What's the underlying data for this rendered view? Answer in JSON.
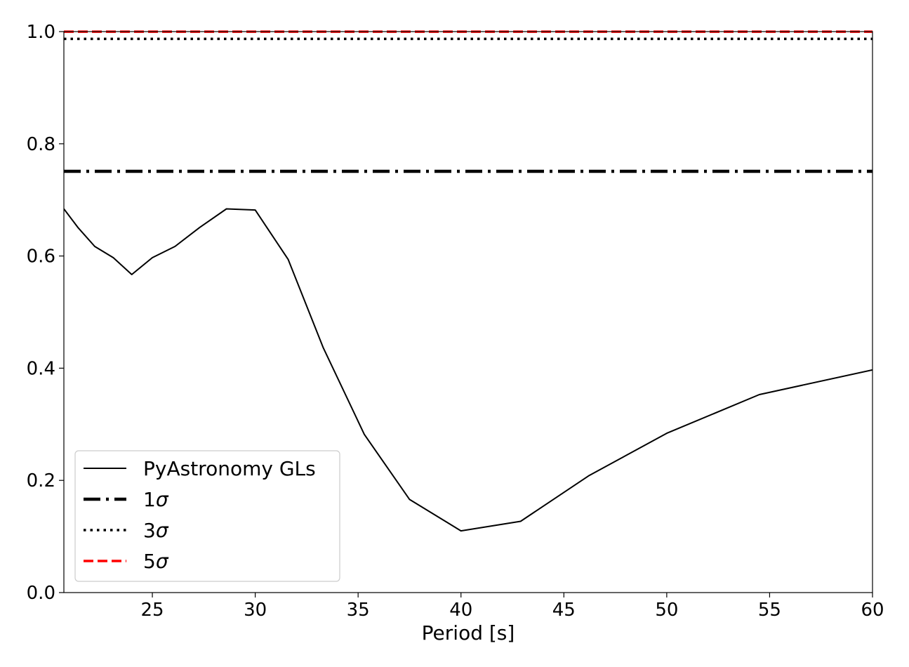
{
  "chart_data": {
    "type": "line",
    "title": "",
    "xlabel": "Period [s]",
    "ylabel": "",
    "xlim": [
      20.7,
      60
    ],
    "ylim": [
      0,
      1.0
    ],
    "xticks": [
      25,
      30,
      35,
      40,
      45,
      50,
      55,
      60
    ],
    "yticks": [
      0.0,
      0.2,
      0.4,
      0.6,
      0.8,
      1.0
    ],
    "xtick_labels": [
      "25",
      "30",
      "35",
      "40",
      "45",
      "50",
      "55",
      "60"
    ],
    "ytick_labels": [
      "0.0",
      "0.2",
      "0.4",
      "0.6",
      "0.8",
      "1.0"
    ],
    "grid": false,
    "legend_position": "lower-left",
    "series": [
      {
        "name": "PyAstronomy GLs",
        "color": "#000000",
        "style": "solid",
        "x": [
          20.7,
          21.4,
          22.2,
          23.1,
          24.0,
          25.0,
          26.1,
          27.3,
          28.6,
          30.0,
          31.6,
          33.3,
          35.3,
          37.5,
          40.0,
          42.9,
          46.2,
          50.0,
          54.5,
          60.0
        ],
        "y": [
          0.684,
          0.65,
          0.617,
          0.597,
          0.567,
          0.597,
          0.617,
          0.651,
          0.684,
          0.682,
          0.594,
          0.437,
          0.282,
          0.166,
          0.11,
          0.127,
          0.208,
          0.284,
          0.353,
          0.397
        ]
      },
      {
        "name": "1σ",
        "legend_prefix": "1",
        "color": "#000000",
        "style": "dashdot",
        "x": [
          20.7,
          60
        ],
        "y": [
          0.751,
          0.751
        ]
      },
      {
        "name": "3σ",
        "legend_prefix": "3",
        "color": "#000000",
        "style": "dotted",
        "x": [
          20.7,
          60
        ],
        "y": [
          0.987,
          0.987
        ]
      },
      {
        "name": "5σ",
        "legend_prefix": "5",
        "color": "#ff0000",
        "style": "dashed",
        "x": [
          20.7,
          60
        ],
        "y": [
          0.9999,
          0.9999
        ]
      }
    ]
  }
}
